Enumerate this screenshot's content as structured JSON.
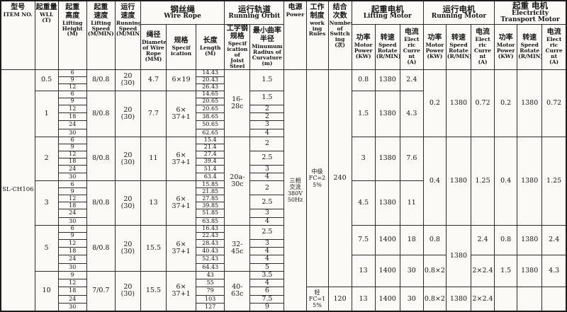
{
  "header_rows": [
    [
      {
        "col": "item",
        "zh": "型号",
        "en": "ITEM NO.",
        "rs": 2
      },
      {
        "col": "wll",
        "zh": "起重量",
        "en": "WLL\n(T)",
        "rs": 2
      },
      {
        "col": "height",
        "zh": "起重\n高度",
        "en": "Lifting\nHeight\n(M)",
        "rs": 2
      },
      {
        "col": "liftspd",
        "zh": "起重\n速度",
        "en": "Lifting\nSpeed\n(M/MIN)",
        "rs": 2
      },
      {
        "col": "runspd",
        "zh": "运行\n速度",
        "en": "Running\nSpeed\n(M/MIN)",
        "rs": 2
      },
      {
        "col": "wire-rope-group",
        "zh": "钢丝绳",
        "en": "Wire Rope",
        "cs": 3
      },
      {
        "col": "running-orbit-group",
        "zh": "运行轨道",
        "en": "Running Orbit",
        "cs": 2
      },
      {
        "col": "power",
        "zh": "电源",
        "en": "Power",
        "rs": 2
      },
      {
        "col": "rules",
        "zh": "工作\n制度",
        "en": "work\ning\nRules",
        "rs": 2
      },
      {
        "col": "switch",
        "zh": "结合\n次数",
        "en": "Number\nof\nSwitch\ning\n(次)",
        "rs": 2
      },
      {
        "col": "lifting-motor-group",
        "zh": "起重电机",
        "en": "Lifting Motor",
        "cs": 3
      },
      {
        "col": "running-motor-group",
        "zh": "运行电机",
        "en": "Running Motor",
        "cs": 3
      },
      {
        "col": "transport-motor-group",
        "zh": "起重 电机",
        "en": "Electricity\nTransport Motor",
        "cs": 3
      }
    ],
    [
      {
        "col": "diam",
        "zh": "绳径",
        "en": "Diameter\nof Wire\nRope\n(MM)"
      },
      {
        "col": "spec",
        "zh": "规格",
        "en": "Specif\nication"
      },
      {
        "col": "length",
        "zh": "长度",
        "en": "Length\n(M)"
      },
      {
        "col": "joist",
        "zh": "工字钢\n规格",
        "en": "Specif\nication\nof\nJoist\nSteel"
      },
      {
        "col": "radius",
        "zh": "最小曲率\n半径",
        "en": "Minumum\nRadius of\nCurvature\n(m)"
      },
      {
        "col": "lp",
        "zh": "功率",
        "en": "Motor\nPower\n(KW)"
      },
      {
        "col": "ls",
        "zh": "转速",
        "en": "Speed\nRotate\n(R/MIN)"
      },
      {
        "col": "lc",
        "zh": "电流",
        "en": "Elect\nric\nCurre\nnt\n(A)"
      },
      {
        "col": "rp",
        "zh": "功率",
        "en": "Motor\nPower\n(KW)"
      },
      {
        "col": "rs",
        "zh": "转速",
        "en": "Speed\nRotate\n(R/MIN)"
      },
      {
        "col": "rc",
        "zh": "电流",
        "en": "Elect\nric\nCurre\nnt\n(A)"
      },
      {
        "col": "tp",
        "zh": "功率",
        "en": "Motor\nPower\n(KW)"
      },
      {
        "col": "ts",
        "zh": "转速",
        "en": "Speed\nRotate\n(R/MIN)"
      },
      {
        "col": "tc",
        "zh": "电流",
        "en": "Elect\nric\nCurre\nnt\n(A)"
      }
    ]
  ],
  "rows": [
    [
      {
        "col": "item",
        "t": "SL-CH106",
        "rs": 32
      },
      {
        "col": "wll",
        "t": "0.5",
        "rs": 3
      },
      {
        "col": "height",
        "t": "6"
      },
      {
        "col": "liftspd",
        "t": "8/0.8",
        "rs": 3
      },
      {
        "col": "runspd",
        "t": "20\n(30)",
        "rs": 3
      },
      {
        "col": "diam",
        "t": "4.7",
        "rs": 3
      },
      {
        "col": "spec",
        "t": "6×19",
        "rs": 3
      },
      {
        "col": "length",
        "t": "14.43"
      },
      {
        "col": "joist",
        "t": "16-\n28c",
        "rs": 9
      },
      {
        "col": "radius",
        "t": "1.5",
        "rs": 3
      },
      {
        "col": "power",
        "t": "三相\n交流\n380V\n50Hz",
        "rs": 32
      },
      {
        "col": "rules",
        "t": "中级\nFC=2\n5%",
        "rs": 29
      },
      {
        "col": "switch",
        "t": "240",
        "rs": 29
      },
      {
        "col": "lp",
        "t": "0.8",
        "rs": 3
      },
      {
        "col": "ls",
        "t": "1380",
        "rs": 3
      },
      {
        "col": "lc",
        "t": "2.4",
        "rs": 3
      },
      {
        "col": "rp",
        "t": "0.2",
        "rs": 9
      },
      {
        "col": "rs",
        "t": "1380",
        "rs": 9
      },
      {
        "col": "rc",
        "t": "0.72",
        "rs": 9
      },
      {
        "col": "tp",
        "t": "0.2",
        "rs": 9
      },
      {
        "col": "ts",
        "t": "1380",
        "rs": 9
      },
      {
        "col": "tc",
        "t": "0.72",
        "rs": 9
      }
    ],
    [
      {
        "col": "height",
        "t": "9"
      },
      {
        "col": "length",
        "t": "20.43"
      }
    ],
    [
      {
        "col": "height",
        "t": "12"
      },
      {
        "col": "length",
        "t": "26.43"
      }
    ],
    [
      {
        "col": "wll",
        "t": "1",
        "rs": 6
      },
      {
        "col": "height",
        "t": "6"
      },
      {
        "col": "liftspd",
        "t": "8/0.8",
        "rs": 6
      },
      {
        "col": "runspd",
        "t": "20\n(30)",
        "rs": 6
      },
      {
        "col": "diam",
        "t": "7.7",
        "rs": 6
      },
      {
        "col": "spec",
        "t": "6×\n37+1",
        "rs": 6
      },
      {
        "col": "length",
        "t": "14.65"
      },
      {
        "col": "radius",
        "t": "1.5",
        "rs": 2
      },
      {
        "col": "lp",
        "t": "1.5",
        "rs": 6
      },
      {
        "col": "ls",
        "t": "1380",
        "rs": 6
      },
      {
        "col": "lc",
        "t": "4.3",
        "rs": 6
      }
    ],
    [
      {
        "col": "height",
        "t": "9"
      },
      {
        "col": "length",
        "t": "20.65"
      }
    ],
    [
      {
        "col": "height",
        "t": "12"
      },
      {
        "col": "length",
        "t": "20.65"
      },
      {
        "col": "radius",
        "t": "2"
      }
    ],
    [
      {
        "col": "height",
        "t": "18"
      },
      {
        "col": "length",
        "t": "38.65"
      },
      {
        "col": "radius",
        "t": "2"
      }
    ],
    [
      {
        "col": "height",
        "t": "24"
      },
      {
        "col": "length",
        "t": "50.65"
      },
      {
        "col": "radius",
        "t": "3"
      }
    ],
    [
      {
        "col": "height",
        "t": "30"
      },
      {
        "col": "length",
        "t": "62.65"
      },
      {
        "col": "radius",
        "t": "4"
      }
    ],
    [
      {
        "col": "wll",
        "t": "2",
        "rs": 6
      },
      {
        "col": "height",
        "t": "6"
      },
      {
        "col": "liftspd",
        "t": "8/0.8",
        "rs": 6
      },
      {
        "col": "runspd",
        "t": "20\n(30)",
        "rs": 6
      },
      {
        "col": "diam",
        "t": "11",
        "rs": 6
      },
      {
        "col": "spec",
        "t": "6×\n37+1",
        "rs": 6
      },
      {
        "col": "length",
        "t": "15.4"
      },
      {
        "col": "joist",
        "t": "20a-\n30c",
        "rs": 12
      },
      {
        "col": "radius",
        "t": "2",
        "rs": 2
      },
      {
        "col": "lp",
        "t": "3",
        "rs": 6
      },
      {
        "col": "ls",
        "t": "1380",
        "rs": 6
      },
      {
        "col": "lc",
        "t": "7.6",
        "rs": 6
      },
      {
        "col": "rp",
        "t": "0.4",
        "rs": 12
      },
      {
        "col": "rs",
        "t": "1380",
        "rs": 12
      },
      {
        "col": "rc",
        "t": "1.25",
        "rs": 12
      },
      {
        "col": "tp",
        "t": "0.4",
        "rs": 12
      },
      {
        "col": "ts",
        "t": "1380",
        "rs": 12
      },
      {
        "col": "tc",
        "t": "1.25",
        "rs": 12
      }
    ],
    [
      {
        "col": "height",
        "t": "9"
      },
      {
        "col": "length",
        "t": "21.4"
      }
    ],
    [
      {
        "col": "height",
        "t": "12"
      },
      {
        "col": "length",
        "t": "27.4"
      },
      {
        "col": "radius",
        "t": "2.5",
        "rs": 2
      }
    ],
    [
      {
        "col": "height",
        "t": "18"
      },
      {
        "col": "length",
        "t": "39.4"
      }
    ],
    [
      {
        "col": "height",
        "t": "24"
      },
      {
        "col": "length",
        "t": "51.4"
      },
      {
        "col": "radius",
        "t": "3"
      }
    ],
    [
      {
        "col": "height",
        "t": "30"
      },
      {
        "col": "length",
        "t": "63.4"
      },
      {
        "col": "radius",
        "t": "4"
      }
    ],
    [
      {
        "col": "wll",
        "t": "3",
        "rs": 6
      },
      {
        "col": "height",
        "t": "6"
      },
      {
        "col": "liftspd",
        "t": "8/0.8",
        "rs": 6
      },
      {
        "col": "runspd",
        "t": "20\n(30)",
        "rs": 6
      },
      {
        "col": "diam",
        "t": "13",
        "rs": 6
      },
      {
        "col": "spec",
        "t": "6×\n37+1",
        "rs": 6
      },
      {
        "col": "length",
        "t": "15.85"
      },
      {
        "col": "radius",
        "t": "2",
        "rs": 2
      },
      {
        "col": "lp",
        "t": "4.5",
        "rs": 6
      },
      {
        "col": "ls",
        "t": "1380",
        "rs": 6
      },
      {
        "col": "lc",
        "t": "11",
        "rs": 6
      }
    ],
    [
      {
        "col": "height",
        "t": "9"
      },
      {
        "col": "length",
        "t": "21.85"
      }
    ],
    [
      {
        "col": "height",
        "t": "12"
      },
      {
        "col": "length",
        "t": "27.85"
      },
      {
        "col": "radius",
        "t": "2.5",
        "rs": 2
      }
    ],
    [
      {
        "col": "height",
        "t": "18"
      },
      {
        "col": "length",
        "t": "39.85"
      }
    ],
    [
      {
        "col": "height",
        "t": "24"
      },
      {
        "col": "length",
        "t": "51.85"
      },
      {
        "col": "radius",
        "t": "3"
      }
    ],
    [
      {
        "col": "height",
        "t": "30"
      },
      {
        "col": "length",
        "t": "63.85"
      },
      {
        "col": "radius",
        "t": "4"
      }
    ],
    [
      {
        "col": "wll",
        "t": "5",
        "rs": 6
      },
      {
        "col": "height",
        "t": "6"
      },
      {
        "col": "liftspd",
        "t": "8/0.8",
        "rs": 6
      },
      {
        "col": "runspd",
        "t": "20\n(30)",
        "rs": 6
      },
      {
        "col": "diam",
        "t": "15.5",
        "rs": 6
      },
      {
        "col": "spec",
        "t": "6×\n37+1",
        "rs": 6
      },
      {
        "col": "length",
        "t": "16.43"
      },
      {
        "col": "joist",
        "t": "32-\n45c",
        "rs": 6
      },
      {
        "col": "radius",
        "t": "2.5",
        "rs": 2
      },
      {
        "col": "lp",
        "t": "7.5",
        "rs": 4
      },
      {
        "col": "ls",
        "t": "1400",
        "rs": 4
      },
      {
        "col": "lc",
        "t": "18",
        "rs": 4
      },
      {
        "col": "rp",
        "t": "0.8",
        "rs": 4
      },
      {
        "col": "rs",
        "t": "1380",
        "rs": 8
      },
      {
        "col": "rc",
        "t": "2.4",
        "rs": 4
      },
      {
        "col": "tp",
        "t": "0.8",
        "rs": 4
      },
      {
        "col": "ts",
        "t": "1380",
        "rs": 4
      },
      {
        "col": "tc",
        "t": "2.4",
        "rs": 4
      }
    ],
    [
      {
        "col": "height",
        "t": "9"
      },
      {
        "col": "length",
        "t": "22.43"
      }
    ],
    [
      {
        "col": "height",
        "t": "12"
      },
      {
        "col": "length",
        "t": "28.43"
      },
      {
        "col": "radius",
        "t": "3"
      }
    ],
    [
      {
        "col": "height",
        "t": "18"
      },
      {
        "col": "length",
        "t": "40.43"
      },
      {
        "col": "radius",
        "t": "4"
      }
    ],
    [
      {
        "col": "height",
        "t": "24"
      },
      {
        "col": "length",
        "t": "52.43"
      },
      {
        "col": "radius",
        "t": "4"
      },
      {
        "col": "lp",
        "t": "13",
        "rs": 4
      },
      {
        "col": "ls",
        "t": "1400",
        "rs": 4
      },
      {
        "col": "lc",
        "t": "30",
        "rs": 4
      },
      {
        "col": "rp",
        "t": "0.8×2",
        "rs": 4
      },
      {
        "col": "rc",
        "t": "2×2.4",
        "rs": 4
      },
      {
        "col": "tp",
        "t": "1.5",
        "rs": 4
      },
      {
        "col": "ts",
        "t": "1380",
        "rs": 4
      },
      {
        "col": "tc",
        "t": "4.3",
        "rs": 4
      }
    ],
    [
      {
        "col": "height",
        "t": "30"
      },
      {
        "col": "length",
        "t": "64.43"
      },
      {
        "col": "radius",
        "t": "5"
      }
    ],
    [
      {
        "col": "wll",
        "t": "10",
        "rs": 5
      },
      {
        "col": "height",
        "t": "9"
      },
      {
        "col": "liftspd",
        "t": "7/0.7",
        "rs": 5
      },
      {
        "col": "runspd",
        "t": "20\n(30)",
        "rs": 5
      },
      {
        "col": "diam",
        "t": "15.5",
        "rs": 5
      },
      {
        "col": "spec",
        "t": "6×\n37+1",
        "rs": 5
      },
      {
        "col": "length",
        "t": "43"
      },
      {
        "col": "joist",
        "t": "40-\n63c",
        "rs": 5
      },
      {
        "col": "radius",
        "t": "3.5"
      }
    ],
    [
      {
        "col": "height",
        "t": "12"
      },
      {
        "col": "length",
        "t": "55"
      },
      {
        "col": "radius",
        "t": "4"
      }
    ],
    [
      {
        "col": "height",
        "t": "18"
      },
      {
        "col": "length",
        "t": "79"
      },
      {
        "col": "radius",
        "t": "6"
      },
      {
        "col": "rules",
        "t": "轻\nFC=1\n5%",
        "rs": 3
      },
      {
        "col": "switch",
        "t": "120",
        "rs": 3
      },
      {
        "col": "lp",
        "t": "13",
        "rs": 3
      },
      {
        "col": "ls",
        "t": "1400",
        "rs": 3
      },
      {
        "col": "lc",
        "t": "30",
        "rs": 3
      },
      {
        "col": "rp",
        "t": "0.8×2",
        "rs": 3
      },
      {
        "col": "rs",
        "t": "1380",
        "rs": 3
      },
      {
        "col": "rc",
        "t": "2×2.4",
        "rs": 3
      },
      {
        "col": "tp",
        "t": "",
        "rs": 3
      },
      {
        "col": "ts",
        "t": "",
        "rs": 3
      },
      {
        "col": "tc",
        "t": "",
        "rs": 3
      }
    ],
    [
      {
        "col": "height",
        "t": "24"
      },
      {
        "col": "length",
        "t": "103"
      },
      {
        "col": "radius",
        "t": "7.5"
      }
    ],
    [
      {
        "col": "height",
        "t": "30"
      },
      {
        "col": "length",
        "t": "127"
      },
      {
        "col": "radius",
        "t": "9"
      }
    ]
  ]
}
